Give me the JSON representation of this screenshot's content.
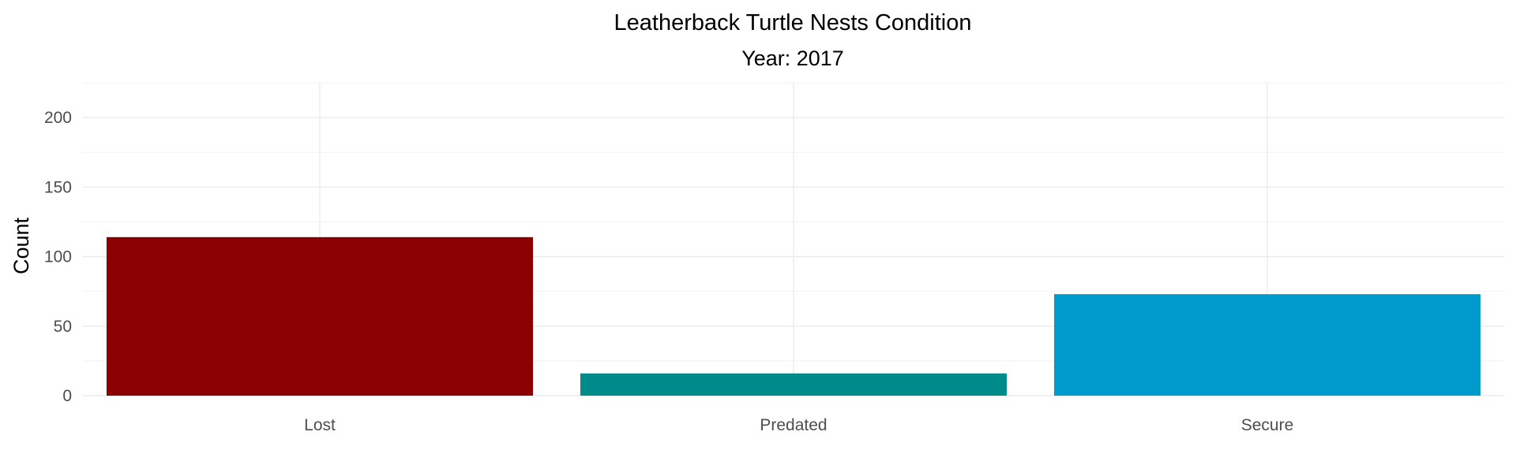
{
  "chart_data": {
    "type": "bar",
    "title": "Leatherback Turtle Nests Condition",
    "subtitle": "Year: 2017",
    "xlabel": "",
    "ylabel": "Count",
    "categories": [
      "Lost",
      "Predated",
      "Secure"
    ],
    "values": [
      114,
      16,
      73
    ],
    "colors": [
      "#8b0000",
      "#008b8b",
      "#009acd"
    ],
    "yticks": [
      0,
      50,
      100,
      150,
      200
    ],
    "ytick_labels": [
      "0",
      "50",
      "100",
      "150",
      "200"
    ],
    "ylim": [
      0,
      225
    ],
    "grid": true,
    "legend": "none"
  }
}
